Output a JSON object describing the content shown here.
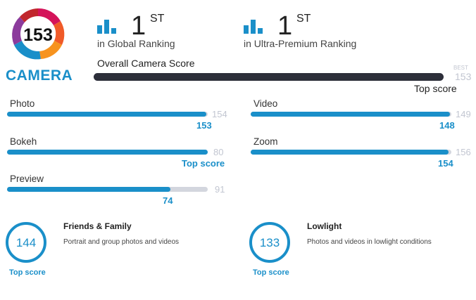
{
  "badge": {
    "score": "153",
    "label": "CAMERA"
  },
  "rankings": [
    {
      "icon": "ranking-bars-icon",
      "number": "1",
      "suffix": "ST",
      "label": "in Global Ranking"
    },
    {
      "icon": "ranking-bars-icon",
      "number": "1",
      "suffix": "ST",
      "label": "in Ultra-Premium Ranking"
    }
  ],
  "overall": {
    "title": "Overall Camera Score",
    "best_label": "BEST",
    "best_value": "153",
    "score_text": "Top score",
    "fraction": 1.0
  },
  "subscores": {
    "photo": {
      "label": "Photo",
      "max": "154",
      "score": "153",
      "fraction": 0.994
    },
    "video": {
      "label": "Video",
      "max": "149",
      "score": "148",
      "fraction": 0.993
    },
    "bokeh": {
      "label": "Bokeh",
      "max": "80",
      "score": "Top score",
      "fraction": 1.0
    },
    "zoom": {
      "label": "Zoom",
      "max": "156",
      "score": "154",
      "fraction": 0.987
    },
    "preview": {
      "label": "Preview",
      "max": "91",
      "score": "74",
      "fraction": 0.813
    }
  },
  "use_cases": [
    {
      "score": "144",
      "badge": "Top score",
      "title": "Friends & Family",
      "desc": "Portrait and group photos and videos"
    },
    {
      "score": "133",
      "badge": "Top score",
      "title": "Lowlight",
      "desc": "Photos and videos in lowlight conditions"
    }
  ],
  "colors": {
    "accent": "#1a8fc9",
    "dark_bar": "#2d2f3a",
    "track": "#d3d6de",
    "muted": "#c2c6d1",
    "badge_ring": [
      "#d4145a",
      "#f05a28",
      "#f7931e",
      "#8c3b9c",
      "#1a8fc9"
    ]
  }
}
